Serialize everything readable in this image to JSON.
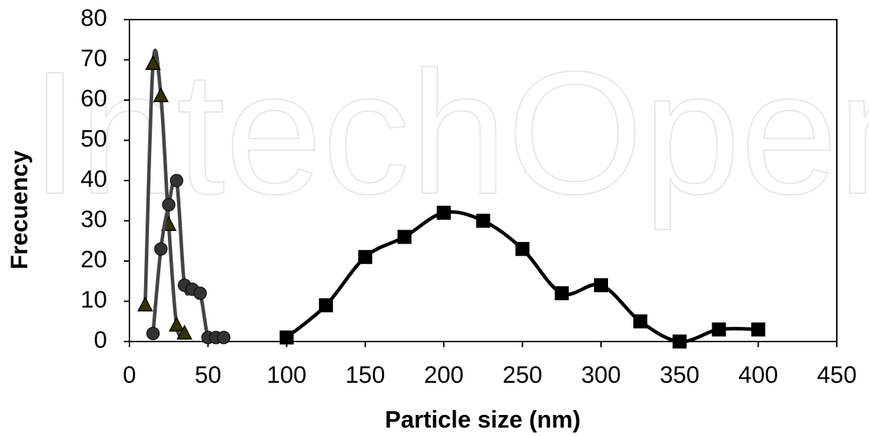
{
  "chart_data": {
    "type": "scatter",
    "watermark": "IntechOpen",
    "xlabel": "Particle size (nm)",
    "ylabel": "Frecuency",
    "xlim": [
      0,
      450
    ],
    "xticks": [
      0,
      50,
      100,
      150,
      200,
      250,
      300,
      350,
      400,
      450
    ],
    "ylim": [
      0,
      80
    ],
    "yticks": [
      0,
      10,
      20,
      30,
      40,
      50,
      60,
      70,
      80
    ],
    "series": [
      {
        "marker": "triangle",
        "color": "#333300",
        "line_color": "#444444",
        "x": [
          10,
          15,
          20,
          25,
          30,
          35
        ],
        "values": [
          9,
          69,
          61,
          29,
          4,
          2
        ]
      },
      {
        "marker": "circle",
        "color": "#333333",
        "line_color": "#444444",
        "x": [
          15,
          20,
          25,
          30,
          35,
          40,
          45,
          50,
          55,
          60
        ],
        "values": [
          2,
          23,
          34,
          40,
          14,
          13,
          12,
          1,
          1,
          1
        ]
      },
      {
        "marker": "square",
        "color": "#000000",
        "line_color": "#000000",
        "x": [
          100,
          125,
          150,
          175,
          200,
          225,
          250,
          275,
          300,
          325,
          350,
          375,
          400
        ],
        "values": [
          1,
          9,
          21,
          26,
          32,
          30,
          23,
          12,
          14,
          5,
          0,
          3,
          3
        ]
      }
    ]
  }
}
